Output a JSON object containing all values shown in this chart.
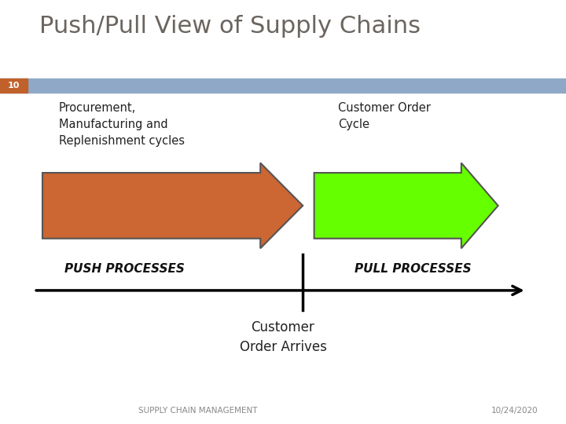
{
  "title": "Push/Pull View of Supply Chains",
  "slide_number": "10",
  "title_color": "#6b6560",
  "title_fontsize": 22,
  "header_bar_color": "#8fa8c8",
  "slide_num_bar_color": "#c0612b",
  "bg_color": "#ffffff",
  "left_label": "Procurement,\nManufacturing and\nReplenishment cycles",
  "right_label": "Customer Order\nCycle",
  "push_arrow_color": "#cc6633",
  "push_arrow_edge": "#555555",
  "pull_arrow_color": "#66ff00",
  "pull_arrow_edge": "#555555",
  "push_text": "PUSH PROCESSES",
  "pull_text": "PULL PROCESSES",
  "bottom_text": "Customer\nOrder Arrives",
  "footer_left": "SUPPLY CHAIN MANAGEMENT",
  "footer_right": "10/24/2020"
}
